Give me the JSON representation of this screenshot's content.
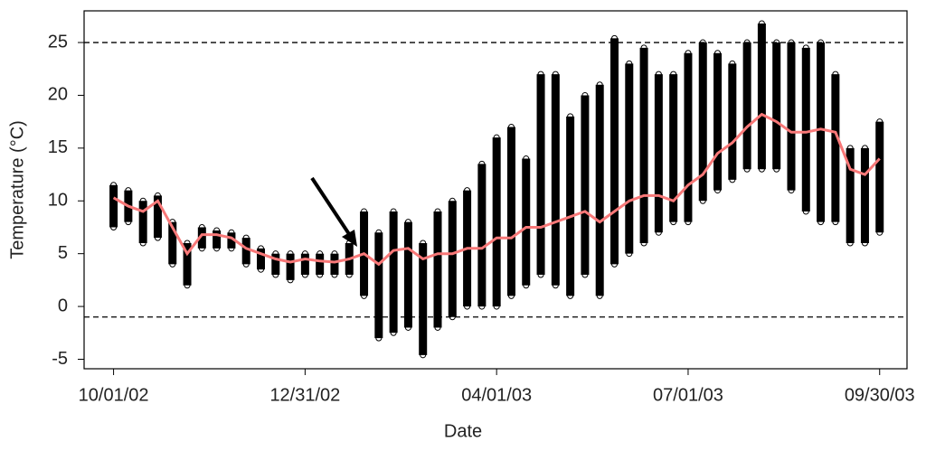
{
  "chart_data": {
    "type": "scatter",
    "xlabel": "Date",
    "ylabel": "Temperature (°C)",
    "xlim": [
      "2002-09-17",
      "2003-10-13"
    ],
    "ylim": [
      -5.9,
      28
    ],
    "xticks": [
      {
        "value": "2002-10-01",
        "label": "10/01/02"
      },
      {
        "value": "2002-12-31",
        "label": "12/31/02"
      },
      {
        "value": "2003-04-01",
        "label": "04/01/03"
      },
      {
        "value": "2003-07-01",
        "label": "07/01/03"
      },
      {
        "value": "2003-09-30",
        "label": "09/30/03"
      }
    ],
    "yticks": [
      -5,
      0,
      5,
      10,
      15,
      20,
      25
    ],
    "reference_lines": [
      25,
      -1
    ],
    "x": [
      "2002-10-01",
      "2002-10-08",
      "2002-10-15",
      "2002-10-22",
      "2002-10-29",
      "2002-11-05",
      "2002-11-12",
      "2002-11-19",
      "2002-11-26",
      "2002-12-03",
      "2002-12-10",
      "2002-12-17",
      "2002-12-24",
      "2002-12-31",
      "2003-01-07",
      "2003-01-14",
      "2003-01-21",
      "2003-01-28",
      "2003-02-04",
      "2003-02-11",
      "2003-02-18",
      "2003-02-25",
      "2003-03-04",
      "2003-03-11",
      "2003-03-18",
      "2003-03-25",
      "2003-04-01",
      "2003-04-08",
      "2003-04-15",
      "2003-04-22",
      "2003-04-29",
      "2003-05-06",
      "2003-05-13",
      "2003-05-20",
      "2003-05-27",
      "2003-06-03",
      "2003-06-10",
      "2003-06-17",
      "2003-06-24",
      "2003-07-01",
      "2003-07-08",
      "2003-07-15",
      "2003-07-22",
      "2003-07-29",
      "2003-08-05",
      "2003-08-12",
      "2003-08-19",
      "2003-08-26",
      "2003-09-02",
      "2003-09-09",
      "2003-09-16",
      "2003-09-23",
      "2003-09-30"
    ],
    "series": [
      {
        "type": "scatter",
        "color": "#000000",
        "values": [
          7.5,
          8,
          6,
          6.5,
          4,
          2,
          5.5,
          5.5,
          5.5,
          4,
          3.5,
          3,
          2.5,
          3,
          3,
          3,
          3,
          1,
          -3,
          -2.5,
          -2,
          -4.6,
          -2,
          -1,
          0,
          0,
          0,
          1,
          2,
          3,
          2,
          1,
          3,
          1,
          4,
          5,
          6,
          7,
          8,
          8,
          10,
          11,
          12,
          13,
          13,
          13,
          11,
          9,
          8,
          8,
          6,
          6,
          7
        ]
      },
      {
        "type": "scatter",
        "color": "#000000",
        "values": [
          11.5,
          11,
          10,
          10.5,
          8,
          6,
          7.5,
          7.2,
          7,
          6.5,
          5.5,
          5,
          5,
          5,
          5,
          5,
          6,
          9,
          7,
          9,
          8,
          6,
          9,
          10,
          11,
          13.5,
          16,
          17,
          14,
          22,
          22,
          18,
          20,
          21,
          25.4,
          23,
          24.5,
          22,
          22,
          24,
          25,
          24,
          23,
          25,
          26.8,
          25,
          25,
          24.5,
          25,
          22,
          15,
          15,
          17.5
        ]
      },
      {
        "type": "line",
        "color": "#f87878",
        "values": [
          10.3,
          9.5,
          9,
          10,
          7.5,
          5,
          6.8,
          6.8,
          6.5,
          5.5,
          5,
          4.5,
          4.2,
          4.5,
          4.3,
          4.2,
          4.5,
          5,
          4,
          5.3,
          5.5,
          4.5,
          5,
          5,
          5.5,
          5.5,
          6.5,
          6.5,
          7.5,
          7.5,
          8,
          8.5,
          9,
          8,
          9,
          10,
          10.5,
          10.5,
          10,
          11.5,
          12.5,
          14.5,
          15.5,
          17,
          18.2,
          17.5,
          16.5,
          16.5,
          16.8,
          16.5,
          13,
          12.5,
          14
        ]
      }
    ]
  }
}
